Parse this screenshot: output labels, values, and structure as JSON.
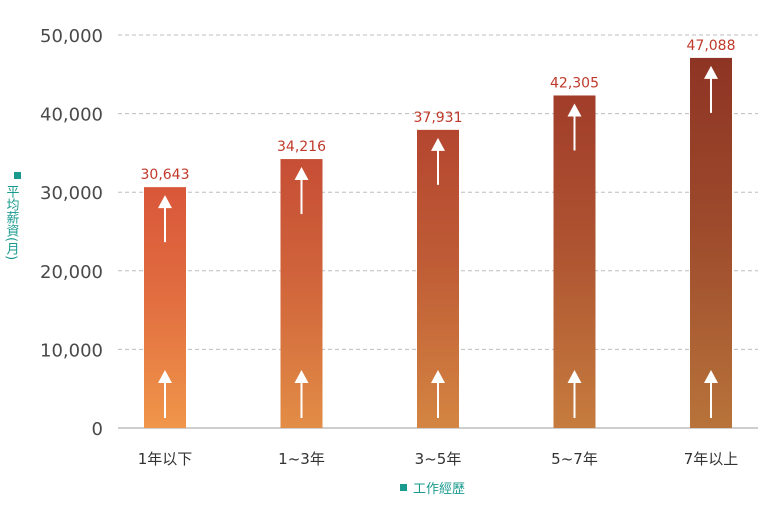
{
  "chart_data": {
    "type": "bar",
    "categories": [
      "1年以下",
      "1~3年",
      "3~5年",
      "5~7年",
      "7年以上"
    ],
    "values": [
      30643,
      34216,
      37931,
      42305,
      47088
    ],
    "value_labels": [
      "30,643",
      "34,216",
      "37,931",
      "42,305",
      "47,088"
    ],
    "xlabel": "工作經歷",
    "ylabel": "平均薪資(月)",
    "ylim": [
      0,
      50000
    ],
    "yticks": [
      0,
      10000,
      20000,
      30000,
      40000,
      50000
    ],
    "ytick_labels": [
      "0",
      "10,000",
      "20,000",
      "30,000",
      "40,000",
      "50,000"
    ],
    "grid": true,
    "colors": {
      "bar_bottom": "#f0964a",
      "bar_top_start": "#d9573a",
      "bar_top_end": "#8e3424",
      "bar_bottom_end": "#b8733a",
      "data_label": "#c0392b",
      "axis_label": "#1a9a8f"
    }
  }
}
